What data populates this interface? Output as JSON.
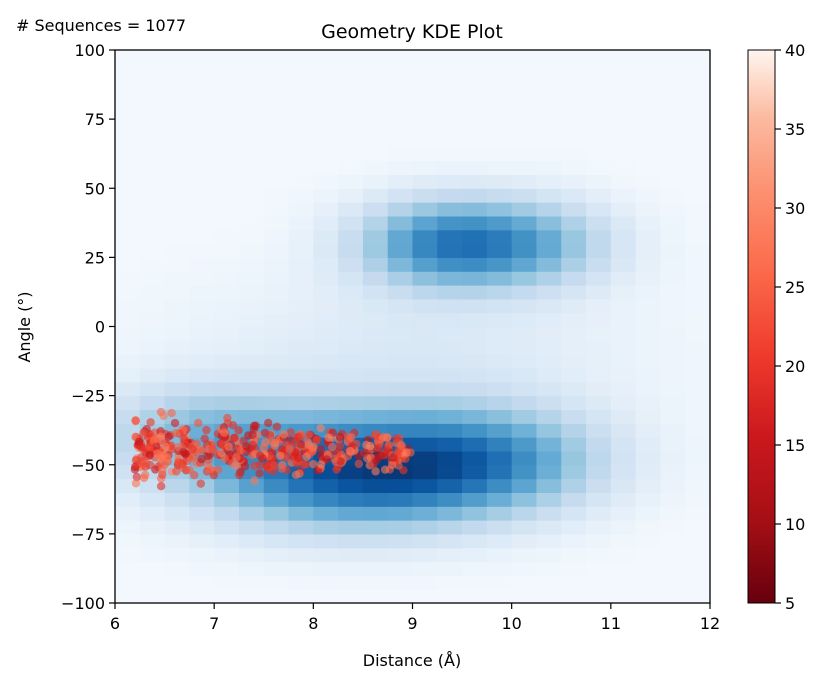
{
  "header": {
    "sequence_count": "# Sequences = 1077"
  },
  "chart_data": {
    "type": "heatmap",
    "title": "Geometry KDE Plot",
    "xlabel": "Distance (Å)",
    "ylabel": "Angle (°)",
    "xlim": [
      6,
      12
    ],
    "ylim": [
      -100,
      100
    ],
    "xticks": [
      "6",
      "7",
      "8",
      "9",
      "10",
      "11",
      "12"
    ],
    "yticks": [
      "−100",
      "−75",
      "−50",
      "−25",
      "0",
      "25",
      "50",
      "75",
      "100"
    ],
    "heatmap": {
      "colormap": "Blues",
      "bins_x": 24,
      "bins_y": 40,
      "density_components": [
        {
          "distance": 8.4,
          "angle": -52,
          "sd_distance": 1.0,
          "sd_angle": 14,
          "weight": 1.0
        },
        {
          "distance": 9.8,
          "angle": -48,
          "sd_distance": 0.8,
          "sd_angle": 13,
          "weight": 0.55
        },
        {
          "distance": 6.8,
          "angle": -38,
          "sd_distance": 0.7,
          "sd_angle": 12,
          "weight": 0.35
        },
        {
          "distance": 9.3,
          "angle": 30,
          "sd_distance": 0.6,
          "sd_angle": 11,
          "weight": 0.7
        },
        {
          "distance": 10.2,
          "angle": 30,
          "sd_distance": 0.6,
          "sd_angle": 11,
          "weight": 0.45
        },
        {
          "distance": 9.0,
          "angle": -10,
          "sd_distance": 1.5,
          "sd_angle": 20,
          "weight": 0.12
        }
      ]
    },
    "scatter": {
      "colormap": "Reds_r",
      "count": 460,
      "distance_range": [
        6.2,
        9.0
      ],
      "angle_center": -45,
      "angle_sd": 5
    },
    "colorbar": {
      "min": 5,
      "max": 40,
      "ticks": [
        "5",
        "10",
        "15",
        "20",
        "25",
        "30",
        "35",
        "40"
      ]
    },
    "grid": false,
    "legend": "none"
  }
}
